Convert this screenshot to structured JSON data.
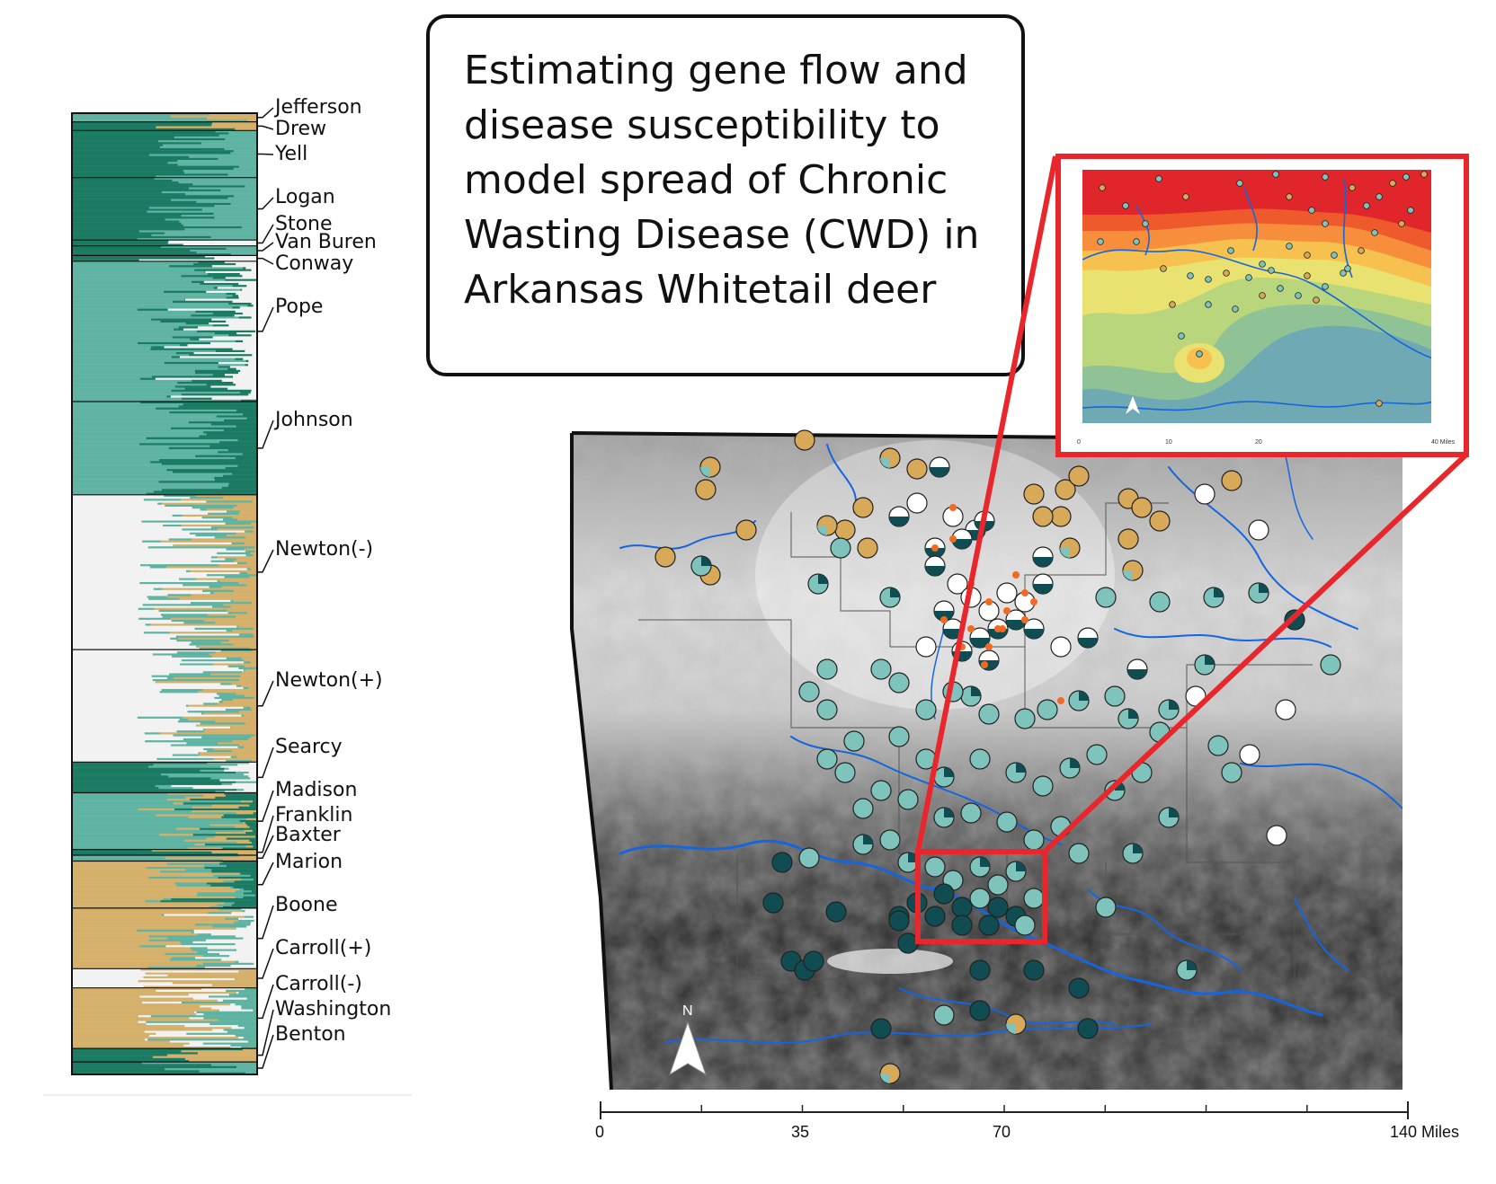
{
  "title": "Estimating gene flow and disease susceptibility to model spread of Chronic Wasting Disease (CWD) in Arkansas Whitetail deer",
  "colors": {
    "ancestry_dark_green": "#1b7a62",
    "ancestry_teal": "#5fb3a2",
    "ancestry_white": "#f2f2f2",
    "ancestry_tan": "#d4b06a",
    "pie_tan": "#d9a95a",
    "pie_teal": "#7fc4bc",
    "pie_dark": "#0f4d52",
    "pie_white": "#ffffff",
    "cwd_positive": "#f26a21",
    "river": "#1565e0",
    "highlight": "#e8262b"
  },
  "populations": [
    {
      "name": "Jefferson",
      "share": 0.009
    },
    {
      "name": "Drew",
      "share": 0.009
    },
    {
      "name": "Yell",
      "share": 0.049
    },
    {
      "name": "Logan",
      "share": 0.065
    },
    {
      "name": "Stone",
      "share": 0.006
    },
    {
      "name": "Van Buren",
      "share": 0.01
    },
    {
      "name": "Conway",
      "share": 0.006
    },
    {
      "name": "Pope",
      "share": 0.146
    },
    {
      "name": "Johnson",
      "share": 0.097
    },
    {
      "name": "Newton(-)",
      "share": 0.161
    },
    {
      "name": "Newton(+)",
      "share": 0.117
    },
    {
      "name": "Searcy",
      "share": 0.032
    },
    {
      "name": "Madison",
      "share": 0.059
    },
    {
      "name": "Franklin",
      "share": 0.006
    },
    {
      "name": "Baxter",
      "share": 0.006
    },
    {
      "name": "Marion",
      "share": 0.049
    },
    {
      "name": "Boone",
      "share": 0.063
    },
    {
      "name": "Carroll(+)",
      "share": 0.02
    },
    {
      "name": "Carroll(-)",
      "share": 0.063
    },
    {
      "name": "Washington",
      "share": 0.014
    },
    {
      "name": "Benton",
      "share": 0.013
    }
  ],
  "scale_bar": {
    "ticks": [
      "0",
      "35",
      "70",
      "140 Miles"
    ]
  },
  "inset": {
    "scale_ticks": [
      "0",
      "10",
      "20",
      "40 Miles"
    ],
    "contour_colors": [
      "#e1262b",
      "#ee5a2b",
      "#f68e3c",
      "#f6c14f",
      "#e9e170",
      "#b9d67c",
      "#8fc395",
      "#6ea9b4"
    ]
  },
  "north_label": "N"
}
